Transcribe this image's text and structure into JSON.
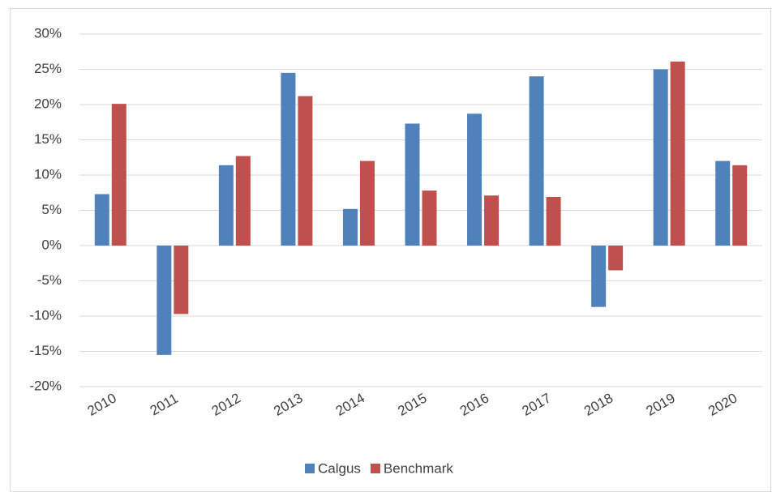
{
  "chart_data": {
    "type": "bar",
    "categories": [
      "2010",
      "2011",
      "2012",
      "2013",
      "2014",
      "2015",
      "2016",
      "2017",
      "2018",
      "2019",
      "2020"
    ],
    "series": [
      {
        "name": "Calgus",
        "color": "#4f81bd",
        "values": [
          7.3,
          -15.5,
          11.4,
          24.5,
          5.2,
          17.3,
          18.7,
          24,
          -8.7,
          25,
          12
        ]
      },
      {
        "name": "Benchmark",
        "color": "#c0504d",
        "values": [
          20.1,
          -9.7,
          12.7,
          21.2,
          12,
          7.8,
          7.1,
          6.9,
          -3.5,
          26.1,
          11.4
        ]
      }
    ],
    "ylim": [
      -20,
      30
    ],
    "yticks": [
      {
        "value": -20,
        "label": "-20%"
      },
      {
        "value": -15,
        "label": "-15%"
      },
      {
        "value": -10,
        "label": "-10%"
      },
      {
        "value": -5,
        "label": "-5%"
      },
      {
        "value": 0,
        "label": "0%"
      },
      {
        "value": 5,
        "label": "5%"
      },
      {
        "value": 10,
        "label": "10%"
      },
      {
        "value": 15,
        "label": "15%"
      },
      {
        "value": 20,
        "label": "20%"
      },
      {
        "value": 25,
        "label": "25%"
      },
      {
        "value": 30,
        "label": "30%"
      }
    ],
    "grid": true,
    "legend": "bottom"
  }
}
